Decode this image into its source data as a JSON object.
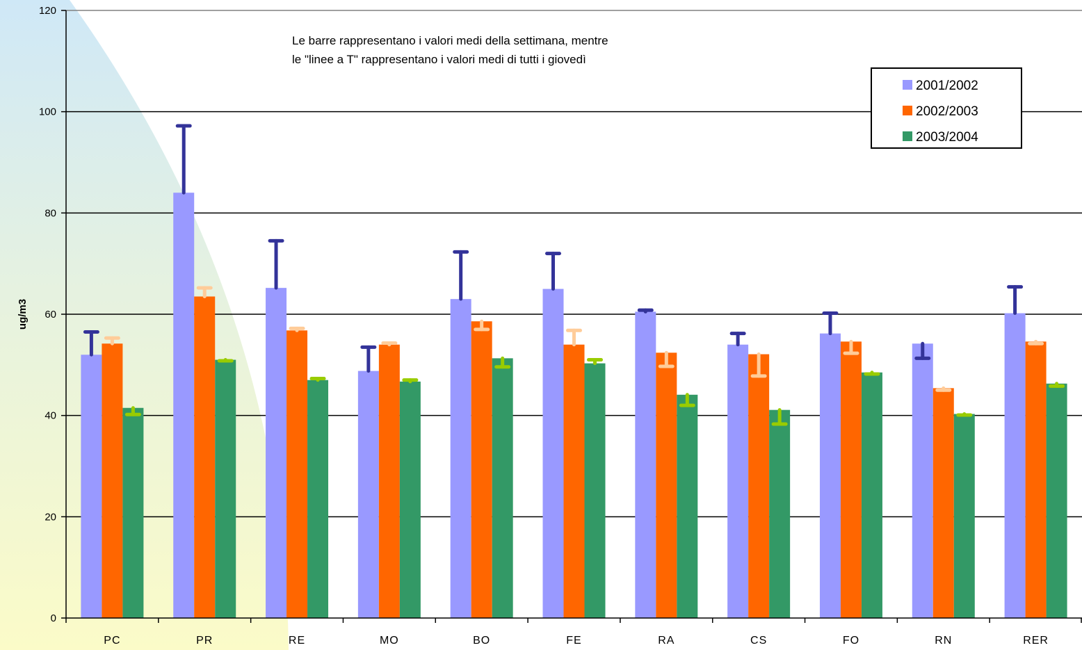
{
  "chart_data": {
    "type": "bar",
    "ylabel": "ug/m3",
    "ylim": [
      0,
      120
    ],
    "yticks": [
      0,
      20,
      40,
      60,
      80,
      100,
      120
    ],
    "categories": [
      "PC",
      "PR",
      "RE",
      "MO",
      "BO",
      "FE",
      "RA",
      "CS",
      "FO",
      "RN",
      "RER"
    ],
    "annotation": [
      "Le barre rappresentano i valori medi della settimana, mentre",
      "le \"linee a T\" rappresentano i valori medi di tutti i giovedì"
    ],
    "legend_position": "top-right",
    "grid": true,
    "series": [
      {
        "name": "2001/2002",
        "color": "#9999ff",
        "tcolor": "#333399",
        "values": [
          52,
          84,
          65.2,
          48.8,
          63,
          65,
          60.5,
          54,
          56.2,
          54.2,
          60.2
        ],
        "thursday": [
          56.5,
          97.2,
          74.5,
          53.5,
          72.3,
          72,
          60.8,
          56.2,
          60.2,
          51.3,
          65.4
        ]
      },
      {
        "name": "2002/2003",
        "color": "#ff6600",
        "tcolor": "#ffcc99",
        "values": [
          54.2,
          63.5,
          56.8,
          54,
          58.6,
          54,
          52.4,
          52.1,
          54.6,
          45.4,
          54.6
        ],
        "thursday": [
          55.3,
          65.2,
          57.2,
          54.3,
          57,
          56.8,
          49.7,
          47.8,
          52.3,
          45,
          54.2
        ]
      },
      {
        "name": "2003/2004",
        "color": "#339966",
        "tcolor": "#99cc00",
        "values": [
          41.5,
          51,
          47,
          46.7,
          51.3,
          50.3,
          44.1,
          41.1,
          48.5,
          40.3,
          46.3
        ],
        "thursday": [
          40.2,
          50.8,
          47.3,
          47,
          49.6,
          51,
          42,
          38.3,
          48.2,
          40.1,
          45.8
        ]
      }
    ]
  }
}
